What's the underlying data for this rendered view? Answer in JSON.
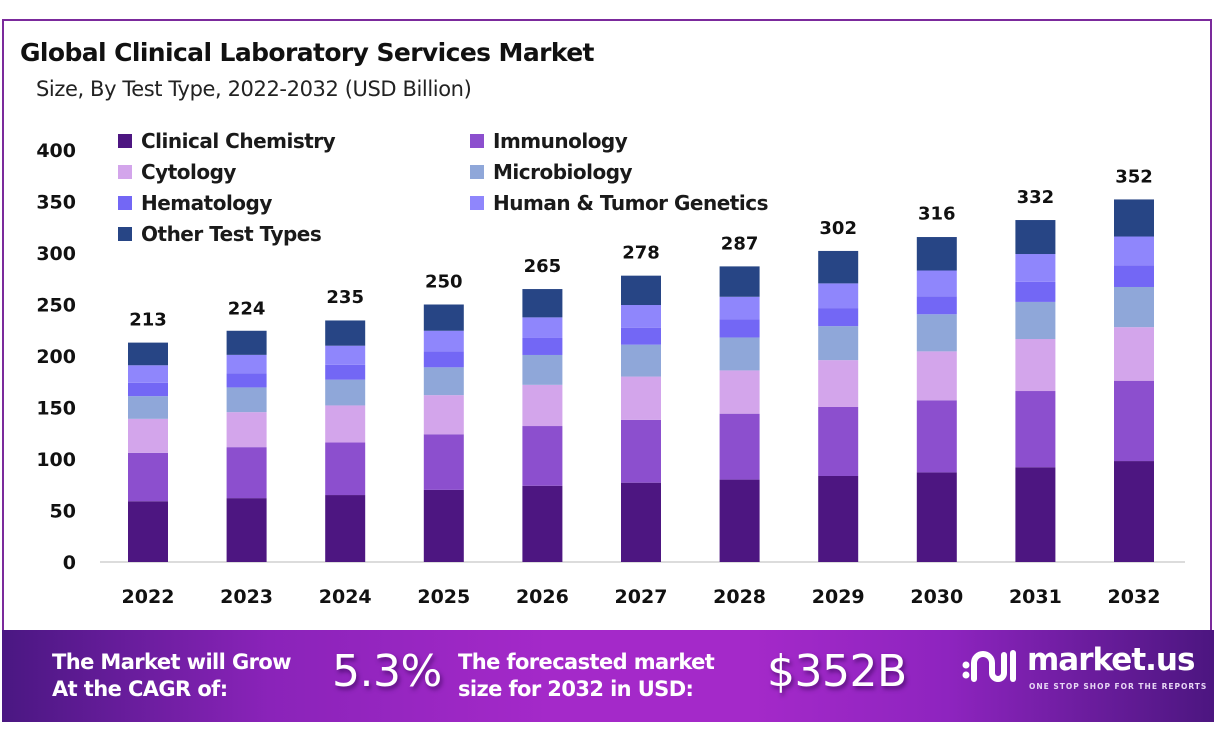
{
  "header": {
    "title": "Global Clinical Laboratory Services Market",
    "subtitle": "Size, By Test Type, 2022-2032 (USD Billion)"
  },
  "chart_data": {
    "type": "bar",
    "stacked": true,
    "title": "Global Clinical Laboratory Services Market",
    "subtitle": "Size, By Test Type, 2022-2032 (USD Billion)",
    "xlabel": "",
    "ylabel": "",
    "ylim": [
      0,
      400
    ],
    "yticks": [
      0,
      50,
      100,
      150,
      200,
      250,
      300,
      350,
      400
    ],
    "grid": false,
    "legend_position": "top-left",
    "categories": [
      "2022",
      "2023",
      "2024",
      "2025",
      "2026",
      "2027",
      "2028",
      "2029",
      "2030",
      "2031",
      "2032"
    ],
    "totals": [
      213,
      224,
      235,
      250,
      265,
      278,
      287,
      302,
      316,
      332,
      352
    ],
    "series": [
      {
        "name": "Clinical Chemistry",
        "color": "#4d1681",
        "values": [
          59,
          62,
          65,
          70,
          74,
          77,
          80,
          83.5,
          87,
          92,
          98
        ]
      },
      {
        "name": "Immunology",
        "color": "#8c4fce",
        "values": [
          47,
          49.5,
          51,
          54,
          58,
          61,
          64,
          67,
          70,
          74,
          78
        ]
      },
      {
        "name": "Cytology",
        "color": "#d3a5eb",
        "values": [
          33,
          34,
          36,
          38,
          40,
          42,
          42,
          45.5,
          47.5,
          50.5,
          52
        ]
      },
      {
        "name": "Microbiology",
        "color": "#8fa7d9",
        "values": [
          22,
          24,
          25,
          27,
          29,
          31,
          32,
          33,
          36,
          36,
          39
        ]
      },
      {
        "name": "Hematology",
        "color": "#7367f5",
        "values": [
          13,
          13.6,
          14.5,
          15.5,
          16.5,
          16.5,
          17.5,
          17.5,
          17.5,
          19.5,
          21
        ]
      },
      {
        "name": "Human & Tumor Genetics",
        "color": "#8f86fc",
        "values": [
          17,
          18,
          18.5,
          20,
          20,
          22,
          22,
          24,
          25,
          27,
          28
        ]
      },
      {
        "name": "Other Test Types",
        "color": "#274585",
        "values": [
          22,
          23.4,
          24.5,
          25.5,
          27.5,
          28.5,
          29.5,
          31.5,
          32.5,
          33,
          36
        ]
      }
    ]
  },
  "legend": {
    "items": [
      {
        "label": "Clinical Chemistry",
        "color": "#4d1681"
      },
      {
        "label": "Immunology",
        "color": "#8c4fce"
      },
      {
        "label": "Cytology",
        "color": "#d3a5eb"
      },
      {
        "label": "Microbiology",
        "color": "#8fa7d9"
      },
      {
        "label": "Hematology",
        "color": "#7367f5"
      },
      {
        "label": "Human & Tumor Genetics",
        "color": "#8f86fc"
      },
      {
        "label": "Other Test Types",
        "color": "#274585"
      }
    ]
  },
  "footer": {
    "cagr_label_line1": "The Market will Grow",
    "cagr_label_line2": "At the CAGR of:",
    "cagr_value": "5.3%",
    "forecast_label_line1": "The forecasted market",
    "forecast_label_line2": "size for 2032 in USD:",
    "forecast_value": "$352B",
    "brand_name": "market.us",
    "brand_tagline": "ONE STOP SHOP FOR THE REPORTS"
  },
  "colors": {
    "frame": "#7b2a9c",
    "axis": "#d0d0d0"
  }
}
